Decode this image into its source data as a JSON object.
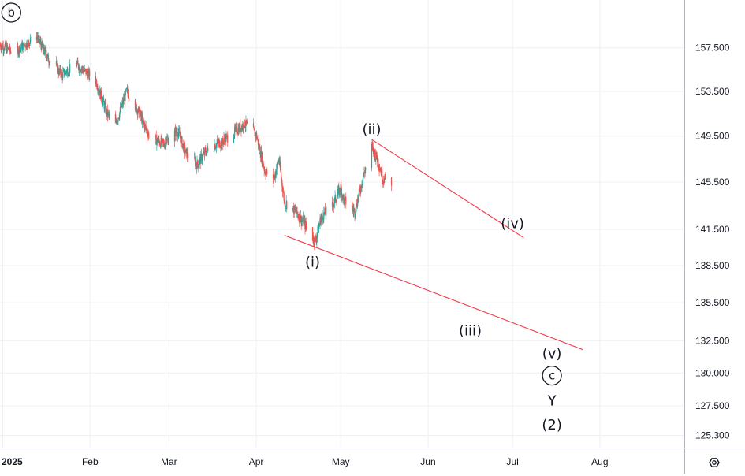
{
  "chart_data": {
    "type": "candlestick",
    "title": "",
    "xlabel": "",
    "ylabel": "",
    "x_tick_labels": [
      "2025",
      "Feb",
      "Mar",
      "Apr",
      "May",
      "Jun",
      "Jul",
      "Aug"
    ],
    "x_ticks": [
      {
        "label": "2025",
        "date": "2025-01-01"
      },
      {
        "label": "Feb",
        "date": "2025-02-01"
      },
      {
        "label": "Mar",
        "date": "2025-03-01"
      },
      {
        "label": "Apr",
        "date": "2025-04-01"
      },
      {
        "label": "May",
        "date": "2025-05-01"
      },
      {
        "label": "Jun",
        "date": "2025-06-01"
      },
      {
        "label": "Jul",
        "date": "2025-07-01"
      },
      {
        "label": "Aug",
        "date": "2025-08-01"
      }
    ],
    "x_range": [
      "2024-12-31",
      "2025-08-31"
    ],
    "y_tick_labels": [
      "157.500",
      "153.500",
      "149.500",
      "145.500",
      "141.500",
      "138.500",
      "135.500",
      "132.500",
      "130.000",
      "127.500",
      "125.300"
    ],
    "y_ticks": [
      157.5,
      153.5,
      149.5,
      145.5,
      141.5,
      138.5,
      135.5,
      132.5,
      130.0,
      127.5,
      125.3
    ],
    "y_scale": "log",
    "y_range": [
      124.4,
      162.0
    ],
    "grid": true,
    "colors": {
      "up": "#26a69a",
      "down": "#ef5350",
      "trendline": "#f23645",
      "text": "#131722",
      "grid": "#eef0f3"
    },
    "price_path": [
      {
        "date": "2024-12-31",
        "value": 157.8
      },
      {
        "date": "2025-01-05",
        "value": 157.0
      },
      {
        "date": "2025-01-10",
        "value": 158.0
      },
      {
        "date": "2025-01-13",
        "value": 158.6
      },
      {
        "date": "2025-01-17",
        "value": 156.5
      },
      {
        "date": "2025-01-22",
        "value": 155.0
      },
      {
        "date": "2025-01-27",
        "value": 156.0
      },
      {
        "date": "2025-02-03",
        "value": 154.5
      },
      {
        "date": "2025-02-07",
        "value": 151.5
      },
      {
        "date": "2025-02-10",
        "value": 150.5
      },
      {
        "date": "2025-02-14",
        "value": 153.5
      },
      {
        "date": "2025-02-18",
        "value": 151.8
      },
      {
        "date": "2025-02-22",
        "value": 149.5
      },
      {
        "date": "2025-02-27",
        "value": 148.8
      },
      {
        "date": "2025-03-04",
        "value": 150.0
      },
      {
        "date": "2025-03-07",
        "value": 148.0
      },
      {
        "date": "2025-03-11",
        "value": 147.0
      },
      {
        "date": "2025-03-15",
        "value": 148.5
      },
      {
        "date": "2025-03-20",
        "value": 149.0
      },
      {
        "date": "2025-03-25",
        "value": 150.0
      },
      {
        "date": "2025-03-28",
        "value": 150.6
      },
      {
        "date": "2025-04-01",
        "value": 149.6
      },
      {
        "date": "2025-04-04",
        "value": 146.5
      },
      {
        "date": "2025-04-07",
        "value": 145.5
      },
      {
        "date": "2025-04-09",
        "value": 147.5
      },
      {
        "date": "2025-04-11",
        "value": 143.8
      },
      {
        "date": "2025-04-15",
        "value": 143.0
      },
      {
        "date": "2025-04-18",
        "value": 142.0
      },
      {
        "date": "2025-04-21",
        "value": 140.8
      },
      {
        "date": "2025-04-22",
        "value": 140.5
      },
      {
        "date": "2025-04-24",
        "value": 142.5
      },
      {
        "date": "2025-04-28",
        "value": 143.5
      },
      {
        "date": "2025-05-01",
        "value": 145.0
      },
      {
        "date": "2025-05-02",
        "value": 144.0
      },
      {
        "date": "2025-05-06",
        "value": 143.0
      },
      {
        "date": "2025-05-09",
        "value": 146.0
      },
      {
        "date": "2025-05-12",
        "value": 148.5
      },
      {
        "date": "2025-05-14",
        "value": 147.5
      },
      {
        "date": "2025-05-16",
        "value": 145.8
      },
      {
        "date": "2025-05-19",
        "value": 145.5
      }
    ],
    "trendlines": [
      {
        "from": {
          "date": "2025-05-12",
          "value": 149.2
        },
        "to": {
          "date": "2025-07-05",
          "value": 140.8
        }
      },
      {
        "from": {
          "date": "2025-04-11",
          "value": 141.0
        },
        "to": {
          "date": "2025-07-26",
          "value": 131.8
        }
      }
    ],
    "annotations": [
      {
        "label": "b",
        "circled": true,
        "date": "2025-01-04",
        "value": 160.8
      },
      {
        "label": "(ii)",
        "date": "2025-05-12",
        "value": 150.1
      },
      {
        "label": "(i)",
        "date": "2025-04-21",
        "value": 138.8
      },
      {
        "label": "(iv)",
        "date": "2025-07-01",
        "value": 142.0
      },
      {
        "label": "(iii)",
        "date": "2025-06-16",
        "value": 133.3
      },
      {
        "label": "(v)",
        "date": "2025-07-15",
        "value": 131.5
      },
      {
        "label": "c",
        "circled": true,
        "date": "2025-07-15",
        "value": 129.8
      },
      {
        "label": "Y",
        "date": "2025-07-15",
        "value": 127.9
      },
      {
        "label": "(2)",
        "date": "2025-07-15",
        "value": 126.1
      }
    ]
  },
  "toolbar": {
    "settings_icon": "settings-icon"
  }
}
